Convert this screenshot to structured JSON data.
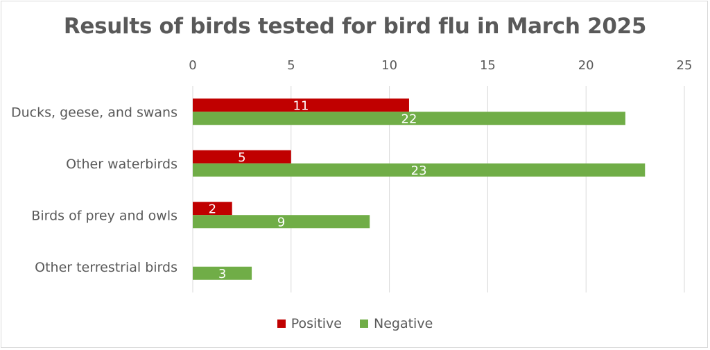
{
  "chart_data": {
    "type": "bar",
    "orientation": "horizontal",
    "title": "Results of birds tested for bird flu in March 2025",
    "categories": [
      "Ducks, geese, and swans",
      "Other waterbirds",
      "Birds of prey and owls",
      "Other terrestrial birds"
    ],
    "series": [
      {
        "name": "Positive",
        "values": [
          11,
          5,
          2,
          null
        ],
        "color": "#c00000"
      },
      {
        "name": "Negative",
        "values": [
          22,
          23,
          9,
          3
        ],
        "color": "#70ad47"
      }
    ],
    "xlim": [
      0,
      25
    ],
    "xticks": [
      0,
      5,
      10,
      15,
      20,
      25
    ],
    "xaxis_position": "top",
    "grid": true,
    "data_labels": true,
    "legend_position": "bottom"
  }
}
